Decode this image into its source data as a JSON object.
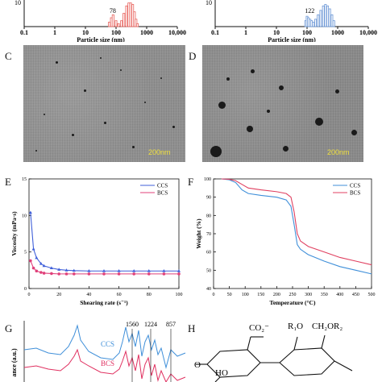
{
  "panels": {
    "C": {
      "letter": "C",
      "scale_bar": "200nm"
    },
    "D": {
      "letter": "D",
      "scale_bar": "200nm"
    },
    "E": {
      "letter": "E"
    },
    "F": {
      "letter": "F"
    },
    "G": {
      "letter": "G"
    },
    "H": {
      "letter": "H"
    }
  },
  "chart_data": [
    {
      "id": "A",
      "type": "bar",
      "xlabel": "Particle size (nm)",
      "x_scale": "log",
      "xlim": [
        0.1,
        10000
      ],
      "x_ticks": [
        "0.1",
        "1",
        "10",
        "100",
        "1000",
        "10,000"
      ],
      "y_tick_visible": "10",
      "annotation": "78",
      "bar_color": "#e8625c",
      "bins": [
        60,
        70,
        80,
        100,
        120,
        150,
        180,
        220,
        260,
        300,
        350,
        400,
        450,
        500
      ],
      "values": [
        3,
        6,
        8,
        4,
        2,
        4,
        9,
        14,
        16,
        16,
        15,
        10,
        5,
        2
      ]
    },
    {
      "id": "B",
      "type": "bar",
      "xlabel": "Particle size (nm)",
      "x_scale": "log",
      "xlim": [
        0.1,
        10000
      ],
      "x_ticks": [
        "0.1",
        "1",
        "10",
        "100",
        "1000",
        "10,000"
      ],
      "y_tick_visible": "10",
      "annotation": "122",
      "bar_color": "#6a96d6",
      "bins": [
        90,
        100,
        110,
        125,
        140,
        160,
        190,
        230,
        280,
        340,
        400,
        470,
        550,
        650,
        750
      ],
      "values": [
        4,
        7,
        6,
        5,
        4,
        3,
        5,
        8,
        11,
        14,
        15,
        14,
        12,
        8,
        4
      ]
    },
    {
      "id": "E",
      "type": "line",
      "xlabel": "Shearing rate (s⁻¹)",
      "ylabel": "Viscosity (mPa·s)",
      "xlim": [
        0,
        100
      ],
      "ylim": [
        0,
        15
      ],
      "x_ticks": [
        0,
        20,
        40,
        60,
        80,
        100
      ],
      "y_ticks": [
        0,
        5,
        10,
        15
      ],
      "legend": "top-right",
      "series": [
        {
          "name": "CCS",
          "color": "#3f5fd9",
          "x": [
            1,
            3,
            5,
            8,
            10,
            15,
            20,
            25,
            30,
            40,
            50,
            60,
            70,
            80,
            90,
            100
          ],
          "y": [
            10.4,
            5.4,
            4.2,
            3.4,
            3.1,
            2.8,
            2.6,
            2.5,
            2.45,
            2.4,
            2.4,
            2.4,
            2.4,
            2.4,
            2.4,
            2.4
          ]
        },
        {
          "name": "BCS",
          "color": "#e0407a",
          "x": [
            1,
            3,
            5,
            8,
            10,
            15,
            20,
            25,
            30,
            40,
            50,
            60,
            70,
            80,
            90,
            100
          ],
          "y": [
            3.8,
            2.8,
            2.4,
            2.2,
            2.1,
            2.05,
            2.0,
            2.0,
            2.0,
            2.0,
            2.0,
            2.0,
            2.0,
            2.0,
            2.0,
            2.0
          ]
        }
      ]
    },
    {
      "id": "F",
      "type": "line",
      "xlabel": "Temperature (°C)",
      "ylabel": "Weight (%)",
      "xlim": [
        0,
        500
      ],
      "ylim": [
        40,
        100
      ],
      "x_ticks": [
        0,
        50,
        100,
        150,
        200,
        250,
        300,
        350,
        400,
        450,
        500
      ],
      "y_ticks": [
        40,
        50,
        60,
        70,
        80,
        90,
        100
      ],
      "legend": "top-right",
      "series": [
        {
          "name": "CCS",
          "color": "#3f8fd9",
          "x": [
            25,
            50,
            70,
            90,
            110,
            150,
            200,
            230,
            245,
            255,
            265,
            275,
            300,
            350,
            400,
            450,
            500
          ],
          "y": [
            100,
            99.5,
            98,
            94,
            92,
            91,
            90,
            88.5,
            85,
            75,
            64,
            61.5,
            58.5,
            55,
            52,
            50,
            48
          ]
        },
        {
          "name": "BCS",
          "color": "#e04060",
          "x": [
            25,
            50,
            70,
            90,
            110,
            150,
            200,
            230,
            245,
            255,
            265,
            275,
            300,
            350,
            400,
            450,
            500
          ],
          "y": [
            100,
            99.8,
            99,
            97,
            95,
            94,
            93,
            92,
            90,
            82,
            70,
            66,
            63,
            60,
            57,
            55,
            53
          ]
        }
      ]
    },
    {
      "id": "G",
      "type": "line",
      "ylabel": "ance (a.u.)",
      "series_labels": [
        "CCS",
        "BCS"
      ],
      "peak_labels": [
        "1560",
        "1224",
        "857"
      ],
      "series": [
        {
          "name": "CCS",
          "color": "#3f8fd9"
        },
        {
          "name": "BCS",
          "color": "#e03060"
        }
      ]
    }
  ],
  "structure_H": {
    "label_co2": "CO₂⁻",
    "label_r1o": "R₁O",
    "label_ch2or2": "CH₂OR₂",
    "label_o_left": "O",
    "label_ho": "HO"
  }
}
